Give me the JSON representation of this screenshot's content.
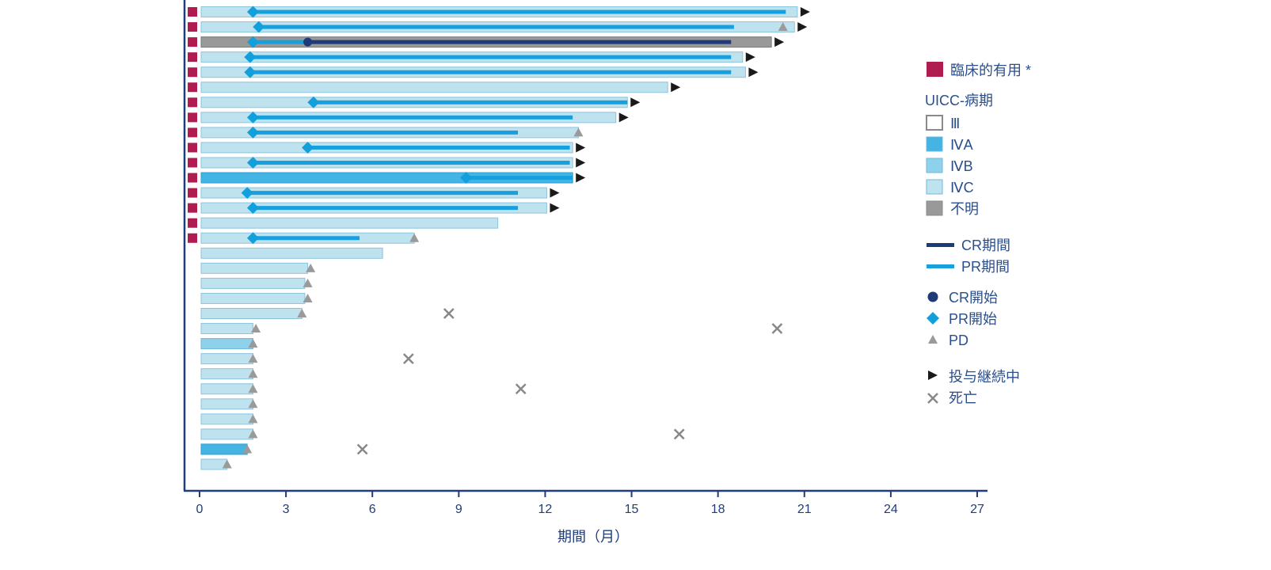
{
  "chart_data": {
    "type": "bar",
    "orientation": "horizontal",
    "subtype": "swimmer-plot",
    "title": "",
    "xlabel": "期間（月）",
    "ylabel": "",
    "xlim": [
      0,
      27
    ],
    "xticks": [
      0,
      3,
      6,
      9,
      12,
      15,
      18,
      21,
      24,
      27
    ],
    "grid": false,
    "legend_position": "right",
    "colors": {
      "clinical": "#b01c4f",
      "III": "#ffffff",
      "IVA": "#43b4e4",
      "IVB": "#8fd0ea",
      "IVC": "#bfe2ef",
      "unknown": "#999999",
      "cr_line": "#1e3a78",
      "pr_line": "#18a0de",
      "pr_marker": "#12a0dd",
      "pd_marker": "#9a9a9a",
      "ongoing_marker": "#1a1a1a",
      "death_marker": "#888888",
      "axis": "#1f3d7a"
    },
    "patients": [
      {
        "duration": 20.7,
        "stage": "IVC",
        "clinical": true,
        "pr_start": 1.8,
        "pr_end": 20.3,
        "ongoing": true
      },
      {
        "duration": 20.6,
        "stage": "IVC",
        "clinical": true,
        "pr_start": 2.0,
        "pr_end": 18.5,
        "pd": 20.2,
        "ongoing": true
      },
      {
        "duration": 19.8,
        "stage": "unknown",
        "clinical": true,
        "pr_start": 1.8,
        "pr_end": 3.7,
        "cr_start": 3.7,
        "cr_end": 18.4,
        "ongoing": true
      },
      {
        "duration": 18.8,
        "stage": "IVC",
        "clinical": true,
        "pr_start": 1.7,
        "pr_end": 18.4,
        "ongoing": true
      },
      {
        "duration": 18.9,
        "stage": "IVC",
        "clinical": true,
        "pr_start": 1.7,
        "pr_end": 18.4,
        "ongoing": true
      },
      {
        "duration": 16.2,
        "stage": "IVC",
        "clinical": true,
        "ongoing": true
      },
      {
        "duration": 14.8,
        "stage": "IVC",
        "clinical": true,
        "pr_start": 3.9,
        "pr_end": 14.8,
        "ongoing": true
      },
      {
        "duration": 14.4,
        "stage": "IVC",
        "clinical": true,
        "pr_start": 1.8,
        "pr_end": 12.9,
        "ongoing": true
      },
      {
        "duration": 13.1,
        "stage": "IVC",
        "clinical": true,
        "pr_start": 1.8,
        "pr_end": 11.0,
        "pd": 13.1
      },
      {
        "duration": 12.9,
        "stage": "IVC",
        "clinical": true,
        "pr_start": 3.7,
        "pr_end": 12.8,
        "ongoing": true
      },
      {
        "duration": 12.9,
        "stage": "IVC",
        "clinical": true,
        "pr_start": 1.8,
        "pr_end": 12.8,
        "ongoing": true
      },
      {
        "duration": 12.9,
        "stage": "IVA",
        "clinical": true,
        "pr_start": 9.2,
        "pr_end": 12.9,
        "ongoing": true
      },
      {
        "duration": 12.0,
        "stage": "IVC",
        "clinical": true,
        "pr_start": 1.6,
        "pr_end": 11.0,
        "ongoing": true
      },
      {
        "duration": 12.0,
        "stage": "IVC",
        "clinical": true,
        "pr_start": 1.8,
        "pr_end": 11.0,
        "ongoing": true
      },
      {
        "duration": 10.3,
        "stage": "IVC",
        "clinical": true
      },
      {
        "duration": 7.4,
        "stage": "IVC",
        "clinical": true,
        "pr_start": 1.8,
        "pr_end": 5.5,
        "pd": 7.4
      },
      {
        "duration": 6.3,
        "stage": "IVC",
        "clinical": false
      },
      {
        "duration": 3.7,
        "stage": "IVC",
        "clinical": false,
        "pd": 3.8
      },
      {
        "duration": 3.6,
        "stage": "IVC",
        "clinical": false,
        "pd": 3.7
      },
      {
        "duration": 3.6,
        "stage": "IVC",
        "clinical": false,
        "pd": 3.7
      },
      {
        "duration": 3.5,
        "stage": "IVC",
        "clinical": false,
        "pd": 3.5,
        "death": 8.6
      },
      {
        "duration": 1.8,
        "stage": "IVC",
        "clinical": false,
        "pd": 1.9,
        "death": 20.0
      },
      {
        "duration": 1.8,
        "stage": "IVB",
        "clinical": false,
        "pd": 1.8
      },
      {
        "duration": 1.8,
        "stage": "IVC",
        "clinical": false,
        "pd": 1.8,
        "death": 7.2
      },
      {
        "duration": 1.8,
        "stage": "IVC",
        "clinical": false,
        "pd": 1.8
      },
      {
        "duration": 1.8,
        "stage": "IVC",
        "clinical": false,
        "pd": 1.8,
        "death": 11.1
      },
      {
        "duration": 1.8,
        "stage": "IVC",
        "clinical": false,
        "pd": 1.8
      },
      {
        "duration": 1.8,
        "stage": "IVC",
        "clinical": false,
        "pd": 1.8
      },
      {
        "duration": 1.8,
        "stage": "IVC",
        "clinical": false,
        "pd": 1.8,
        "death": 16.6
      },
      {
        "duration": 1.6,
        "stage": "IVA",
        "clinical": false,
        "pd": 1.6,
        "death": 5.6
      },
      {
        "duration": 0.9,
        "stage": "IVC",
        "clinical": false,
        "pd": 0.9
      }
    ],
    "legend": {
      "clinical_label": "臨床的有用 *",
      "stage_title": "UICC-病期",
      "stages": [
        {
          "key": "III",
          "label": "Ⅲ"
        },
        {
          "key": "IVA",
          "label": "ⅣA"
        },
        {
          "key": "IVB",
          "label": "ⅣB"
        },
        {
          "key": "IVC",
          "label": "ⅣC"
        },
        {
          "key": "unknown",
          "label": "不明"
        }
      ],
      "cr_duration": "CR期間",
      "pr_duration": "PR期間",
      "cr_start": "CR開始",
      "pr_start": "PR開始",
      "pd": "PD",
      "ongoing": "投与継続中",
      "death": "死亡"
    }
  }
}
